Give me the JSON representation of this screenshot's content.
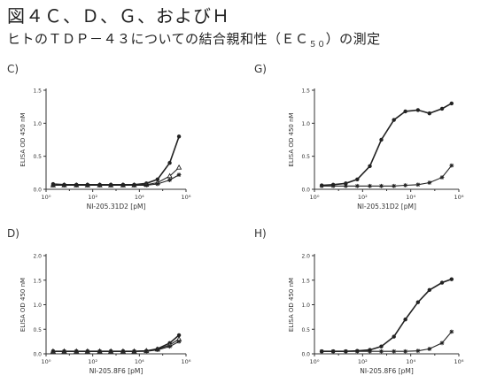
{
  "header": {
    "title": "図４Ｃ、Ｄ、Ｇ、およびＨ",
    "subtitle_pre": "ヒトのＴＤＰ－４３についての結合親和性（ＥＣ",
    "subtitle_sub": "５０",
    "subtitle_post": "）の測定"
  },
  "chart_data": [
    {
      "panel": "C)",
      "type": "line",
      "xscale": "log",
      "xlim": [
        1,
        1000000
      ],
      "xticks": [
        "10⁰",
        "10²",
        "10⁴",
        "10⁶"
      ],
      "xlabel": "NI-205.31D2 [pM]",
      "ylabel": "ELISA OD 450 nM",
      "ylim": [
        0,
        1.5
      ],
      "yticks": [
        "0.0",
        "0.5",
        "1.0",
        "1.5"
      ],
      "series": [
        {
          "marker": "circle",
          "x": [
            2,
            6,
            20,
            60,
            200,
            600,
            2000,
            6000,
            20000,
            60000,
            200000,
            500000
          ],
          "y": [
            0.08,
            0.07,
            0.07,
            0.07,
            0.07,
            0.07,
            0.07,
            0.07,
            0.09,
            0.15,
            0.4,
            0.8
          ]
        },
        {
          "marker": "triangle",
          "x": [
            2,
            6,
            20,
            60,
            200,
            600,
            2000,
            6000,
            20000,
            60000,
            200000,
            500000
          ],
          "y": [
            0.06,
            0.06,
            0.06,
            0.06,
            0.06,
            0.06,
            0.06,
            0.06,
            0.07,
            0.1,
            0.2,
            0.33
          ]
        },
        {
          "marker": "star",
          "x": [
            2,
            6,
            20,
            60,
            200,
            600,
            2000,
            6000,
            20000,
            60000,
            200000,
            500000
          ],
          "y": [
            0.06,
            0.06,
            0.06,
            0.06,
            0.06,
            0.06,
            0.06,
            0.06,
            0.06,
            0.08,
            0.14,
            0.22
          ]
        }
      ]
    },
    {
      "panel": "G)",
      "type": "line",
      "xscale": "log",
      "xlim": [
        1,
        1000000
      ],
      "xticks": [
        "10⁰",
        "10²",
        "10⁴",
        "10⁶"
      ],
      "xlabel": "NI-205.31D2 [pM]",
      "ylabel": "ELISA OD 450 nM",
      "ylim": [
        0,
        1.5
      ],
      "yticks": [
        "0.0",
        "0.5",
        "1.0",
        "1.5"
      ],
      "series": [
        {
          "marker": "circle",
          "x": [
            2,
            6,
            20,
            60,
            200,
            600,
            2000,
            6000,
            20000,
            60000,
            200000,
            500000
          ],
          "y": [
            0.06,
            0.07,
            0.09,
            0.15,
            0.35,
            0.75,
            1.05,
            1.18,
            1.2,
            1.15,
            1.22,
            1.3
          ]
        },
        {
          "marker": "star",
          "x": [
            2,
            6,
            20,
            60,
            200,
            600,
            2000,
            6000,
            20000,
            60000,
            200000,
            500000
          ],
          "y": [
            0.05,
            0.05,
            0.05,
            0.05,
            0.05,
            0.05,
            0.05,
            0.06,
            0.07,
            0.1,
            0.18,
            0.36
          ]
        }
      ]
    },
    {
      "panel": "D)",
      "type": "line",
      "xscale": "log",
      "xlim": [
        1,
        1000000
      ],
      "xticks": [
        "10⁰",
        "10²",
        "10⁴",
        "10⁶"
      ],
      "xlabel": "NI-205.8F6 [pM]",
      "ylabel": "ELISA OD 450 nM",
      "ylim": [
        0,
        2.0
      ],
      "yticks": [
        "0.0",
        "0.5",
        "1.0",
        "1.5",
        "2.0"
      ],
      "series": [
        {
          "marker": "circle",
          "x": [
            2,
            6,
            20,
            60,
            200,
            600,
            2000,
            6000,
            20000,
            60000,
            200000,
            500000
          ],
          "y": [
            0.05,
            0.05,
            0.05,
            0.05,
            0.05,
            0.05,
            0.05,
            0.05,
            0.06,
            0.1,
            0.22,
            0.38
          ]
        },
        {
          "marker": "triangle",
          "x": [
            2,
            6,
            20,
            60,
            200,
            600,
            2000,
            6000,
            20000,
            60000,
            200000,
            500000
          ],
          "y": [
            0.05,
            0.05,
            0.05,
            0.05,
            0.05,
            0.05,
            0.05,
            0.05,
            0.06,
            0.09,
            0.18,
            0.3
          ]
        },
        {
          "marker": "star",
          "x": [
            2,
            6,
            20,
            60,
            200,
            600,
            2000,
            6000,
            20000,
            60000,
            200000,
            500000
          ],
          "y": [
            0.05,
            0.05,
            0.05,
            0.05,
            0.05,
            0.05,
            0.05,
            0.05,
            0.05,
            0.08,
            0.15,
            0.25
          ]
        }
      ]
    },
    {
      "panel": "H)",
      "type": "line",
      "xscale": "log",
      "xlim": [
        1,
        1000000
      ],
      "xticks": [
        "10⁰",
        "10²",
        "10⁴",
        "10⁶"
      ],
      "xlabel": "NI-205.8F6 [pM]",
      "ylabel": "ELISA OD 450 nM",
      "ylim": [
        0,
        2.0
      ],
      "yticks": [
        "0.0",
        "0.5",
        "1.0",
        "1.5",
        "2.0"
      ],
      "series": [
        {
          "marker": "circle",
          "x": [
            2,
            6,
            20,
            60,
            200,
            600,
            2000,
            6000,
            20000,
            60000,
            200000,
            500000
          ],
          "y": [
            0.05,
            0.05,
            0.05,
            0.06,
            0.08,
            0.15,
            0.35,
            0.7,
            1.05,
            1.3,
            1.45,
            1.52
          ]
        },
        {
          "marker": "star",
          "x": [
            2,
            6,
            20,
            60,
            200,
            600,
            2000,
            6000,
            20000,
            60000,
            200000,
            500000
          ],
          "y": [
            0.05,
            0.05,
            0.05,
            0.05,
            0.05,
            0.05,
            0.05,
            0.05,
            0.06,
            0.1,
            0.22,
            0.45
          ]
        }
      ]
    }
  ]
}
